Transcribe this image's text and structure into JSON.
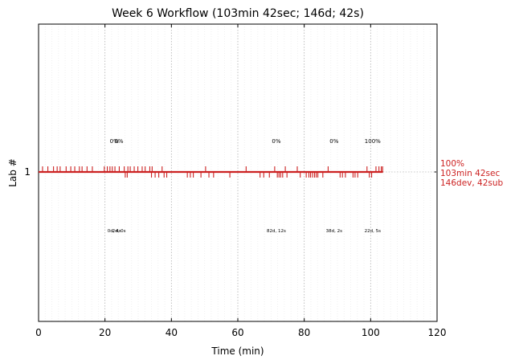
{
  "chart_data": {
    "type": "event-timeline",
    "title": "Week 6 Workflow (103min 42sec; 146d; 42s)",
    "xlabel": "Time (min)",
    "ylabel": "Lab #",
    "xlim": [
      0,
      120
    ],
    "x_ticks": [
      0,
      20,
      40,
      60,
      80,
      100,
      120
    ],
    "y_ticks": [
      "1"
    ],
    "grid": "vertical, dotted every 20 min, faint every 2 min",
    "line_color": "#cc2222",
    "rows": [
      {
        "label": "1",
        "end_minutes": 103.7,
        "end_summary": [
          "100%",
          "103min 42sec",
          "146dev, 42sub"
        ],
        "milestones": [
          {
            "x": 22.8,
            "percent": "0%",
            "detail": "0d, 4s"
          },
          {
            "x": 24.2,
            "percent": "0%",
            "detail": "2d, 0s"
          },
          {
            "x": 71.6,
            "percent": "0%",
            "detail": "82d, 12s"
          },
          {
            "x": 89.0,
            "percent": "0%",
            "detail": "38d, 2s"
          },
          {
            "x": 100.6,
            "percent": "100%",
            "detail": "22d, 5s"
          }
        ],
        "dev_events": [
          1.2,
          2.8,
          4.5,
          5.6,
          6.5,
          8.3,
          9.7,
          10.9,
          12.3,
          13.1,
          14.6,
          16.2,
          19.8,
          20.7,
          21.5,
          22.2,
          23.0,
          24.3,
          25.8,
          26.9,
          27.6,
          28.8,
          29.9,
          31.2,
          32.1,
          33.5,
          34.2,
          37.2,
          50.3,
          62.5,
          71.1,
          74.3,
          77.9,
          87.2,
          98.9,
          101.6,
          102.5,
          103.2,
          103.6
        ],
        "sub_events": [
          26.1,
          26.7,
          34.0,
          35.1,
          36.2,
          37.8,
          38.6,
          44.8,
          45.7,
          46.6,
          48.9,
          51.3,
          52.7,
          57.6,
          66.7,
          67.8,
          69.5,
          71.9,
          72.4,
          72.9,
          73.5,
          74.8,
          78.8,
          80.6,
          81.4,
          81.9,
          82.5,
          83.1,
          83.6,
          84.1,
          85.6,
          90.8,
          91.5,
          92.4,
          94.7,
          95.3,
          96.1,
          99.6,
          100.3
        ]
      }
    ]
  }
}
